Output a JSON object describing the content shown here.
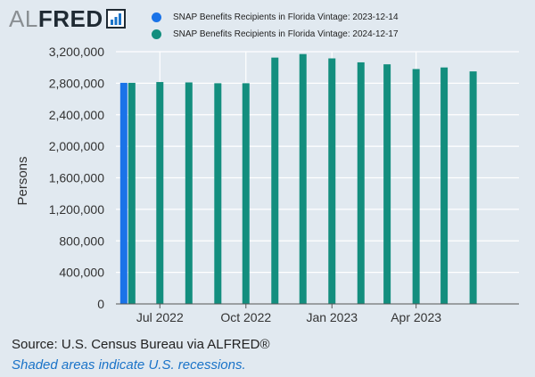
{
  "logo": {
    "part1": "AL",
    "part2": "FRED"
  },
  "legend": {
    "items": [
      {
        "label": "SNAP Benefits Recipients in Florida Vintage: 2023-12-14",
        "color": "#1a73e8"
      },
      {
        "label": "SNAP Benefits Recipients in Florida Vintage: 2024-12-17",
        "color": "#138e7e"
      }
    ]
  },
  "footer": {
    "source": "Source: U.S. Census Bureau via ALFRED®",
    "note": "Shaded areas indicate U.S. recessions."
  },
  "chart_data": {
    "type": "bar",
    "ylabel": "Persons",
    "xlabel": "",
    "ylim": [
      0,
      3200000
    ],
    "yticks": [
      0,
      400000,
      800000,
      1200000,
      1600000,
      2000000,
      2400000,
      2800000,
      3200000
    ],
    "ytick_labels": [
      "0",
      "400,000",
      "800,000",
      "1,200,000",
      "1,600,000",
      "2,000,000",
      "2,400,000",
      "2,800,000",
      "3,200,000"
    ],
    "grid": true,
    "x_domain": [
      "2022-05-15",
      "2023-07-20"
    ],
    "xticks": [
      "2022-07-01",
      "2022-10-01",
      "2023-01-01",
      "2023-04-01"
    ],
    "xtick_labels": [
      "Jul 2022",
      "Oct 2022",
      "Jan 2023",
      "Apr 2023"
    ],
    "series": [
      {
        "name": "SNAP Benefits Recipients in Florida Vintage: 2023-12-14",
        "color": "#1a73e8",
        "points": [
          {
            "date": "2022-06-01",
            "value": 2805000
          }
        ]
      },
      {
        "name": "SNAP Benefits Recipients in Florida Vintage: 2024-12-17",
        "color": "#138e7e",
        "points": [
          {
            "date": "2022-06-01",
            "value": 2805000
          },
          {
            "date": "2022-07-01",
            "value": 2815000
          },
          {
            "date": "2022-08-01",
            "value": 2810000
          },
          {
            "date": "2022-09-01",
            "value": 2800000
          },
          {
            "date": "2022-10-01",
            "value": 2800000
          },
          {
            "date": "2022-11-01",
            "value": 3125000
          },
          {
            "date": "2022-12-01",
            "value": 3170000
          },
          {
            "date": "2023-01-01",
            "value": 3115000
          },
          {
            "date": "2023-02-01",
            "value": 3065000
          },
          {
            "date": "2023-03-01",
            "value": 3040000
          },
          {
            "date": "2023-04-01",
            "value": 2980000
          },
          {
            "date": "2023-05-01",
            "value": 3000000
          },
          {
            "date": "2023-06-01",
            "value": 2950000
          }
        ]
      }
    ]
  }
}
